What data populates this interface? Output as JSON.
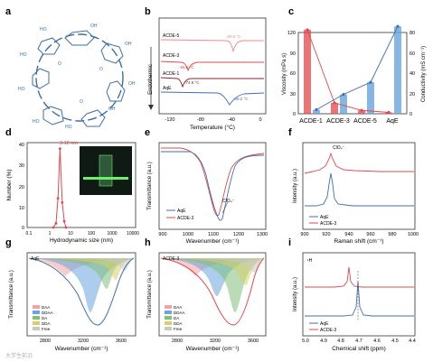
{
  "panel_letters": [
    "a",
    "b",
    "c",
    "d",
    "e",
    "f",
    "g",
    "h",
    "i"
  ],
  "watermark": "大学生前沿",
  "colors": {
    "red": "#e0484c",
    "blue": "#3f6fb0",
    "lightblue": "#6aa4dc",
    "pink": "#f2a3a3",
    "green": "#7fbf7a",
    "yellow": "#d8cf6a",
    "grey": "#555555",
    "molecule": "#3a6ea8"
  },
  "panel_a": {
    "oh_label": "OH",
    "o_label": "O",
    "ho_label": "HO"
  },
  "panel_b": {
    "ylabel": "Endothermic",
    "xlabel": "Temperature (°C)",
    "xticks": [
      "-120",
      "-80",
      "-40",
      "0"
    ],
    "curves": [
      {
        "name": "ACDE-5",
        "peak_label": "-28.6 °C"
      },
      {
        "name": "ACDE-3",
        "peak_label": "-65.6 °C"
      },
      {
        "name": "ACDE-1",
        "peak_label": "-74.6 °C"
      },
      {
        "name": "AqE",
        "peak_label": "-39.2 °C"
      }
    ]
  },
  "chart_data": [
    {
      "type": "bar",
      "categories": [
        "ACDE-1",
        "ACDE-3",
        "ACDE-5",
        "AqE"
      ],
      "series": [
        {
          "name": "Viscosity",
          "unit": "mPa s",
          "values": [
            124,
            16,
            5,
            2
          ]
        },
        {
          "name": "Conductivity",
          "unit": "mS cm⁻¹",
          "values": [
            4,
            19,
            31,
            86
          ]
        }
      ],
      "ylabel": "Viscosity (mPa s)",
      "y2label": "Conductivity (mS cm⁻¹)",
      "ylim": [
        0,
        120
      ],
      "y2lim": [
        0,
        80
      ],
      "yticks": [
        "0",
        "30",
        "60",
        "90",
        "120"
      ],
      "y2ticks": [
        "0",
        "20",
        "40",
        "60",
        "80"
      ]
    },
    {
      "type": "line",
      "xlabel": "Hydrodynamic size (nm)",
      "ylabel": "Number (%)",
      "xticks": [
        "0.1",
        "1",
        "10",
        "100",
        "1000",
        "10000"
      ],
      "yticks": [
        "0",
        "10",
        "20",
        "30",
        "40"
      ],
      "ylim": [
        0,
        40
      ],
      "x": [
        1.5,
        2,
        2.5,
        3.12,
        4,
        5,
        6
      ],
      "values": [
        0,
        2,
        14,
        38,
        12,
        3,
        0
      ],
      "annotation": "3.12 nm"
    },
    {
      "type": "line",
      "xlabel": "Wavenumber (cm⁻¹)",
      "ylabel": "Transmittance (a.u.)",
      "xticks": [
        "900",
        "1000",
        "1100",
        "1200",
        "1300"
      ],
      "annotation": "ClO₄⁻",
      "series": [
        {
          "name": "AqE"
        },
        {
          "name": "ACDE-3"
        }
      ]
    },
    {
      "type": "line",
      "xlabel": "Raman shift (cm⁻¹)",
      "ylabel": "Intensity (a.u.)",
      "xticks": [
        "900",
        "920",
        "940",
        "960",
        "980",
        "1000"
      ],
      "annotation": "ClO₄⁻",
      "series": [
        {
          "name": "AqE"
        },
        {
          "name": "ACDE-3"
        }
      ]
    },
    {
      "type": "area",
      "title": "AqE",
      "xlabel": "Wavenumber (cm⁻¹)",
      "ylabel": "Transmittance (a.u.)",
      "xticks": [
        "2800",
        "3200",
        "3600"
      ],
      "series": [
        {
          "name": "DAA"
        },
        {
          "name": "DDAA"
        },
        {
          "name": "DA"
        },
        {
          "name": "DDA"
        },
        {
          "name": "Free"
        }
      ]
    },
    {
      "type": "area",
      "title": "ACDE-3",
      "xlabel": "Wavenumber (cm⁻¹)",
      "ylabel": "Transmittance (a.u.)",
      "xticks": [
        "2800",
        "3200",
        "3600"
      ],
      "series": [
        {
          "name": "DAA"
        },
        {
          "name": "DDAA"
        },
        {
          "name": "DA"
        },
        {
          "name": "DDA"
        },
        {
          "name": "Free"
        }
      ]
    },
    {
      "type": "line",
      "title": "¹H",
      "xlabel": "Chemical shift (ppm)",
      "ylabel": "Intensity (a.u.)",
      "xticks": [
        "5.0",
        "4.9",
        "4.8",
        "4.7",
        "4.6",
        "4.5",
        "4.4"
      ],
      "series": [
        {
          "name": "AqE"
        },
        {
          "name": "ACDE-3"
        }
      ]
    }
  ]
}
